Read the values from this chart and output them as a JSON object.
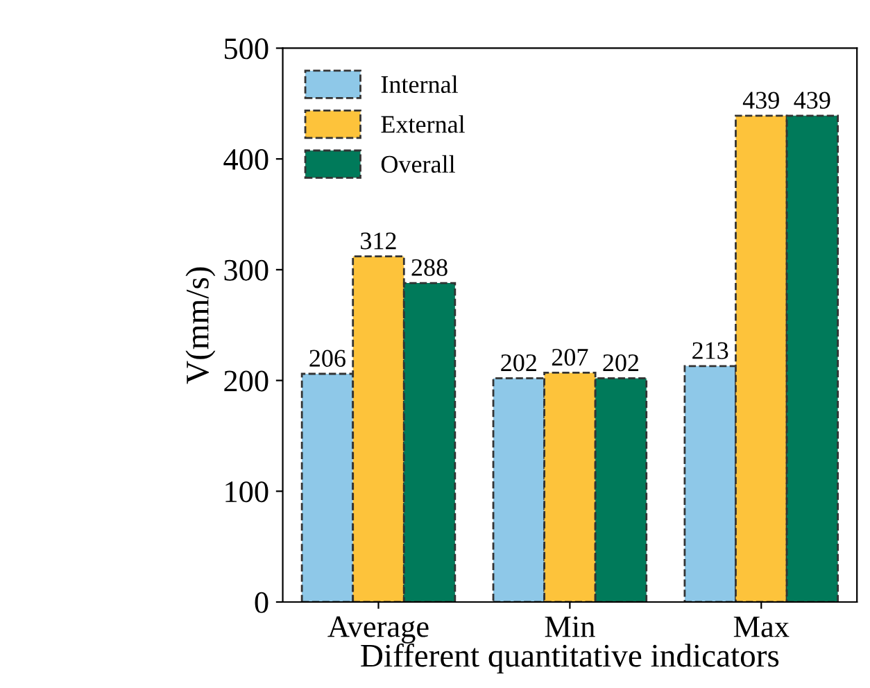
{
  "chart_data": {
    "type": "bar",
    "xlabel": "Different quantitative indicators",
    "ylabel": "V(mm/s)",
    "categories": [
      "Average",
      "Min",
      "Max"
    ],
    "series": [
      {
        "name": "Internal",
        "color": "#8ec8e8",
        "values": [
          206,
          202,
          213
        ]
      },
      {
        "name": "External",
        "color": "#fdc33b",
        "values": [
          312,
          207,
          439
        ]
      },
      {
        "name": "Overall",
        "color": "#007a5a",
        "values": [
          288,
          202,
          439
        ]
      }
    ],
    "ylim": [
      0,
      500
    ],
    "yticks": [
      0,
      100,
      200,
      300,
      400,
      500
    ],
    "data_labels": true,
    "legend": "top left",
    "grid": false
  }
}
